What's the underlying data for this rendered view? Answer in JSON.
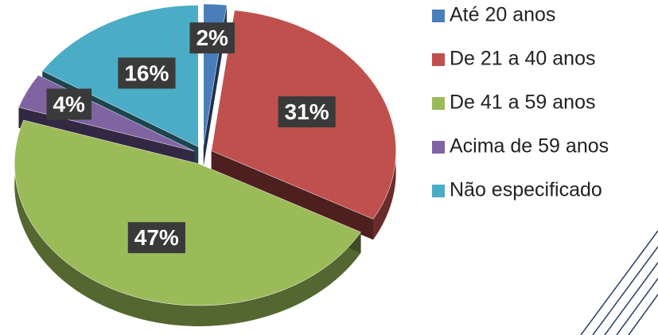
{
  "chart_data": {
    "type": "pie",
    "categories": [
      "Até 20 anos",
      "De 21 a 40 anos",
      "De 41 a 59 anos",
      "Acima de 59 anos",
      "Não especificado"
    ],
    "values": [
      2,
      31,
      47,
      4,
      16
    ],
    "value_labels": [
      "2%",
      "31%",
      "47%",
      "4%",
      "16%"
    ],
    "colors": [
      "#4a7ebb",
      "#c0504d",
      "#9bbb59",
      "#8064a2",
      "#4bacc6"
    ],
    "legend": "right"
  }
}
